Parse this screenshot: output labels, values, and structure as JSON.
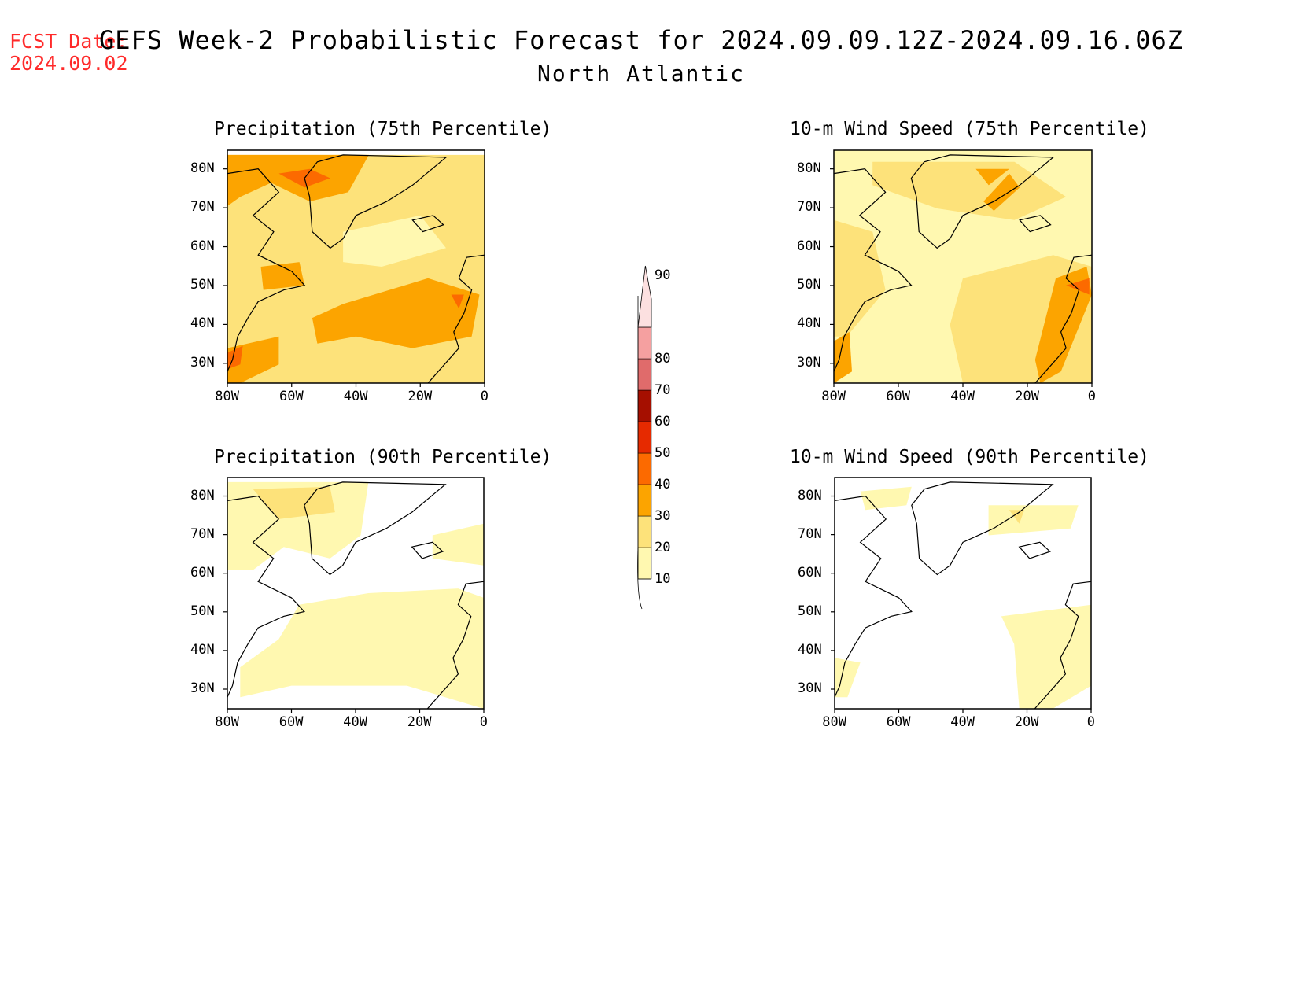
{
  "header": {
    "fcst_label": "FCST Date:",
    "fcst_date": "2024.09.02",
    "title": "GEFS Week-2 Probabilistic Forecast for 2024.09.09.12Z-2024.09.16.06Z",
    "subtitle": "North Atlantic"
  },
  "panels": [
    {
      "id": "precip-75",
      "title": "Precipitation (75th Percentile)",
      "intensity": "high"
    },
    {
      "id": "wind-75",
      "title": "10-m Wind Speed (75th Percentile)",
      "intensity": "med"
    },
    {
      "id": "precip-90",
      "title": "Precipitation (90th Percentile)",
      "intensity": "low"
    },
    {
      "id": "wind-90",
      "title": "10-m Wind Speed (90th Percentile)",
      "intensity": "verylow"
    }
  ],
  "axes": {
    "lat_labels": [
      "80N",
      "70N",
      "60N",
      "50N",
      "40N",
      "30N"
    ],
    "lon_labels": [
      "80W",
      "60W",
      "40W",
      "20W",
      "0"
    ]
  },
  "colorbar": {
    "levels": [
      "10",
      "20",
      "30",
      "40",
      "50",
      "60",
      "70",
      "80",
      "90"
    ],
    "colors": [
      "#fff8b0",
      "#fde27a",
      "#fca400",
      "#fc6a00",
      "#e62a00",
      "#a50f00",
      "#e06b6b",
      "#f5a0a0",
      "#fce0e0"
    ]
  }
}
